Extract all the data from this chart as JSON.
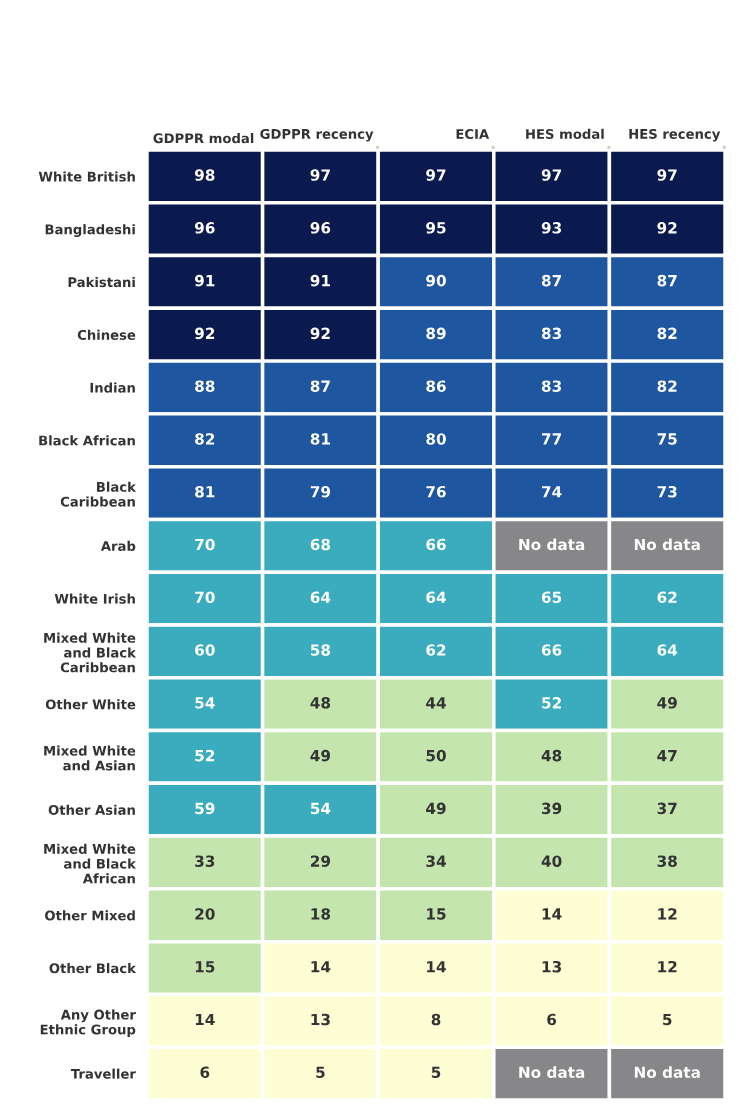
{
  "chart_data": {
    "type": "heatmap",
    "data_labels": true,
    "categories": [
      "GDPPR modal",
      "GDPPR recency",
      "ECIA",
      "HES modal",
      "HES recency"
    ],
    "y_categories": [
      "White British",
      "Bangladeshi",
      "Pakistani",
      "Chinese",
      "Indian",
      "Black African",
      "Black\nCaribbean",
      "Arab",
      "White Irish",
      "Mixed White\nand Black\nCaribbean",
      "Other White",
      "Mixed White\nand Asian",
      "Other Asian",
      "Mixed White\nand Black\nAfrican",
      "Other Mixed",
      "Other Black",
      "Any Other\nEthnic Group",
      "Traveller"
    ],
    "cells": [
      [
        98,
        97,
        97,
        97,
        97
      ],
      [
        96,
        96,
        95,
        93,
        92
      ],
      [
        91,
        91,
        90,
        87,
        87
      ],
      [
        92,
        92,
        89,
        83,
        82
      ],
      [
        88,
        87,
        86,
        83,
        82
      ],
      [
        82,
        81,
        80,
        77,
        75
      ],
      [
        81,
        79,
        76,
        74,
        73
      ],
      [
        70,
        68,
        66,
        null,
        null
      ],
      [
        70,
        64,
        64,
        65,
        62
      ],
      [
        60,
        58,
        62,
        66,
        64
      ],
      [
        54,
        48,
        44,
        52,
        49
      ],
      [
        52,
        49,
        50,
        48,
        47
      ],
      [
        59,
        54,
        49,
        39,
        37
      ],
      [
        33,
        29,
        34,
        40,
        38
      ],
      [
        20,
        18,
        15,
        14,
        12
      ],
      [
        15,
        14,
        14,
        13,
        12
      ],
      [
        14,
        13,
        8,
        6,
        5
      ],
      [
        6,
        5,
        5,
        null,
        null
      ]
    ],
    "annotations": [
      "No data",
      "No data",
      "No data",
      "No data"
    ],
    "colors": [
      [
        "#0b1a4e",
        "#0b1a4e",
        "#0b1a4e",
        "#0b1a4e",
        "#0b1a4e"
      ],
      [
        "#0b1a4e",
        "#0b1a4e",
        "#0b1a4e",
        "#0b1a4e",
        "#0b1a4e"
      ],
      [
        "#0b1a4e",
        "#0b1a4e",
        "#1f56a0",
        "#1f56a0",
        "#1f56a0"
      ],
      [
        "#0b1a4e",
        "#0b1a4e",
        "#1f56a0",
        "#1f56a0",
        "#1f56a0"
      ],
      [
        "#1f56a0",
        "#1f56a0",
        "#1f56a0",
        "#1f56a0",
        "#1f56a0"
      ],
      [
        "#1f56a0",
        "#1f56a0",
        "#1f56a0",
        "#1f56a0",
        "#1f56a0"
      ],
      [
        "#1f56a0",
        "#1f56a0",
        "#1f56a0",
        "#1f56a0",
        "#1f56a0"
      ],
      [
        "#3aacbd",
        "#3aacbd",
        "#3aacbd",
        "#87878a",
        "#87878a"
      ],
      [
        "#3aacbd",
        "#3aacbd",
        "#3aacbd",
        "#3aacbd",
        "#3aacbd"
      ],
      [
        "#3aacbd",
        "#3aacbd",
        "#3aacbd",
        "#3aacbd",
        "#3aacbd"
      ],
      [
        "#3aacbd",
        "#c4e6ae",
        "#c4e6ae",
        "#3aacbd",
        "#c4e6ae"
      ],
      [
        "#3aacbd",
        "#c4e6ae",
        "#c4e6ae",
        "#c4e6ae",
        "#c4e6ae"
      ],
      [
        "#3aacbd",
        "#3aacbd",
        "#c4e6ae",
        "#c4e6ae",
        "#c4e6ae"
      ],
      [
        "#c4e6ae",
        "#c4e6ae",
        "#c4e6ae",
        "#c4e6ae",
        "#c4e6ae"
      ],
      [
        "#c4e6ae",
        "#c4e6ae",
        "#c4e6ae",
        "#fdfed4",
        "#fdfed4"
      ],
      [
        "#c4e6ae",
        "#fdfed4",
        "#fdfed4",
        "#fdfed4",
        "#fdfed4"
      ],
      [
        "#fdfed4",
        "#fdfed4",
        "#fdfed4",
        "#fdfed4",
        "#fdfed4"
      ],
      [
        "#fdfed4",
        "#fdfed4",
        "#fdfed4",
        "#87878a",
        "#87878a"
      ]
    ]
  }
}
